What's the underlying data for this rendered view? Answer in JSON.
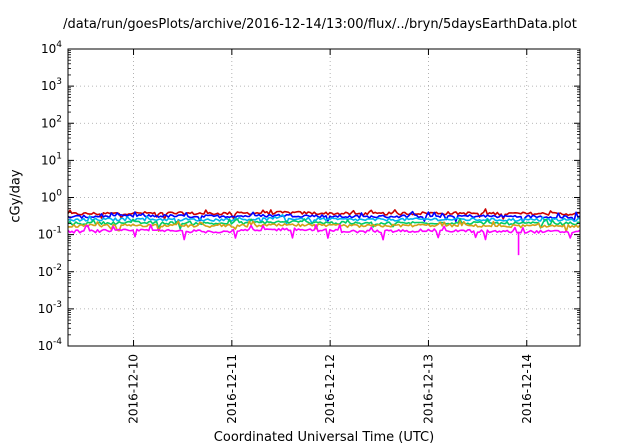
{
  "chart_data": {
    "type": "line",
    "title": "/data/run/goesPlots/archive/2016-12-14/13:00/flux/../bryn/5daysEarthData.plot",
    "xlabel": "Coordinated Universal Time (UTC)",
    "ylabel": "cGy/day",
    "yscale": "log",
    "ylim": [
      0.0001,
      10000
    ],
    "yticks": [
      {
        "mantissa": "10",
        "exp": "-4"
      },
      {
        "mantissa": "10",
        "exp": "-3"
      },
      {
        "mantissa": "10",
        "exp": "-2"
      },
      {
        "mantissa": "10",
        "exp": "-1"
      },
      {
        "mantissa": "10",
        "exp": "0"
      },
      {
        "mantissa": "10",
        "exp": "1"
      },
      {
        "mantissa": "10",
        "exp": "2"
      },
      {
        "mantissa": "10",
        "exp": "3"
      },
      {
        "mantissa": "10",
        "exp": "4"
      }
    ],
    "xlim": [
      "2016-12-09 08:00",
      "2016-12-14 13:00"
    ],
    "xticks": [
      "2016-12-10",
      "2016-12-11",
      "2016-12-12",
      "2016-12-13",
      "2016-12-14"
    ],
    "grid": true,
    "series": [
      {
        "color": "#cc0000",
        "values": [
          0.36,
          0.38,
          0.37,
          0.39,
          0.36,
          0.38,
          0.37,
          0.36
        ]
      },
      {
        "color": "#0000ff",
        "values": [
          0.3,
          0.32,
          0.31,
          0.33,
          0.3,
          0.32,
          0.31,
          0.3
        ]
      },
      {
        "color": "#00b0f0",
        "values": [
          0.25,
          0.26,
          0.25,
          0.27,
          0.25,
          0.26,
          0.25,
          0.25
        ]
      },
      {
        "color": "#00cc66",
        "values": [
          0.2,
          0.21,
          0.2,
          0.22,
          0.2,
          0.21,
          0.2,
          0.2
        ]
      },
      {
        "color": "#d4a017",
        "values": [
          0.17,
          0.18,
          0.17,
          0.18,
          0.17,
          0.18,
          0.17,
          0.17
        ]
      },
      {
        "color": "#ff00ff",
        "values": [
          0.12,
          0.13,
          0.12,
          0.14,
          0.12,
          0.13,
          0.12,
          0.12
        ]
      }
    ]
  }
}
